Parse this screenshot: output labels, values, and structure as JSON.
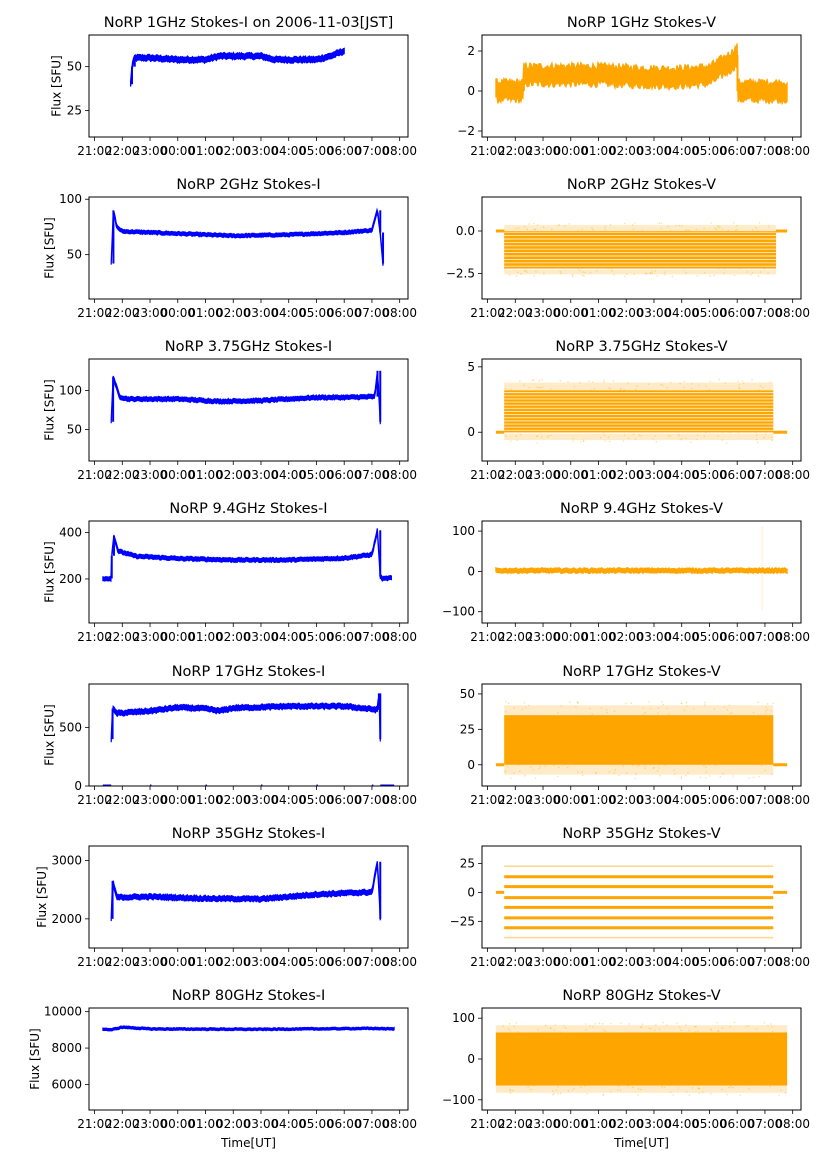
{
  "figure": {
    "colors": {
      "stokes_i": "#0000ff",
      "stokes_v": "#ffa500",
      "axes": "#000000"
    },
    "x_tick_labels": [
      "21:00",
      "22:00",
      "23:00",
      "00:00",
      "01:00",
      "02:00",
      "03:00",
      "04:00",
      "05:00",
      "06:00",
      "07:00",
      "08:00"
    ]
  },
  "chart_data": [
    {
      "type": "scatter",
      "title": "NoRP 1GHz Stokes-I on 2006-11-03[JST]",
      "xlabel": "",
      "ylabel": "Flux [SFU]",
      "ylim": [
        10,
        68
      ],
      "yticks": [
        25,
        50
      ],
      "ytick_labels": [
        "25",
        "50"
      ],
      "series": [
        {
          "name": "Stokes-I",
          "x_range_hours": [
            22.3,
            30.0
          ],
          "profile": [
            [
              22.3,
              40
            ],
            [
              22.35,
              50
            ],
            [
              22.45,
              55
            ],
            [
              23,
              55
            ],
            [
              24,
              54
            ],
            [
              25,
              54
            ],
            [
              25.5,
              56
            ],
            [
              26,
              56
            ],
            [
              27,
              56
            ],
            [
              27.5,
              54
            ],
            [
              28,
              54
            ],
            [
              29,
              54
            ],
            [
              29.5,
              56
            ],
            [
              30,
              59
            ]
          ],
          "spread": 1.5
        }
      ]
    },
    {
      "type": "scatter",
      "title": "NoRP 1GHz Stokes-V",
      "xlabel": "",
      "ylabel": "",
      "ylim": [
        -2.3,
        2.8
      ],
      "yticks": [
        -2,
        0,
        2
      ],
      "ytick_labels": [
        "−2",
        "0",
        "2"
      ],
      "series": [
        {
          "name": "Stokes-V",
          "x_range_hours": [
            21.3,
            31.8
          ],
          "profile": [
            [
              21.3,
              0
            ],
            [
              22.3,
              0
            ],
            [
              22.31,
              0.8
            ],
            [
              23,
              0.8
            ],
            [
              25,
              0.8
            ],
            [
              27,
              0.7
            ],
            [
              28,
              0.7
            ],
            [
              29,
              0.8
            ],
            [
              29.8,
              1.5
            ],
            [
              30,
              1.8
            ],
            [
              30.01,
              0
            ],
            [
              31.8,
              0
            ]
          ],
          "spread": 0.45
        }
      ]
    },
    {
      "type": "scatter",
      "title": "NoRP 2GHz Stokes-I",
      "xlabel": "",
      "ylabel": "Flux [SFU]",
      "ylim": [
        10,
        102
      ],
      "yticks": [
        50,
        100
      ],
      "ytick_labels": [
        "50",
        "100"
      ],
      "series": [
        {
          "name": "Stokes-I",
          "x_range_hours": [
            21.6,
            31.4
          ],
          "profile": [
            [
              21.6,
              42
            ],
            [
              21.68,
              90
            ],
            [
              21.8,
              75
            ],
            [
              22,
              71
            ],
            [
              24,
              69
            ],
            [
              26,
              67
            ],
            [
              28,
              68
            ],
            [
              30,
              70
            ],
            [
              31,
              72
            ],
            [
              31.2,
              90
            ],
            [
              31.3,
              70
            ],
            [
              31.4,
              42
            ]
          ],
          "spread": 1.5
        }
      ]
    },
    {
      "type": "scatter",
      "title": "NoRP 2GHz Stokes-V",
      "xlabel": "",
      "ylabel": "",
      "ylim": [
        -4.0,
        2.0
      ],
      "yticks": [
        -2.5,
        0.0
      ],
      "ytick_labels": [
        "−2.5",
        "0.0"
      ],
      "series": [
        {
          "name": "Stokes-V",
          "x_range_hours": [
            21.3,
            31.8
          ],
          "bands": [
            [
              -2.2,
              0.0
            ]
          ],
          "band_x": [
            21.6,
            31.4
          ],
          "baseline_x": [
            [
              21.3,
              21.6
            ],
            [
              31.4,
              31.8
            ]
          ],
          "spread": 0.35
        }
      ]
    },
    {
      "type": "scatter",
      "title": "NoRP 3.75GHz Stokes-I",
      "xlabel": "",
      "ylabel": "Flux [SFU]",
      "ylim": [
        10,
        140
      ],
      "yticks": [
        50,
        100
      ],
      "ytick_labels": [
        "50",
        "100"
      ],
      "series": [
        {
          "name": "Stokes-I",
          "x_range_hours": [
            21.6,
            31.3
          ],
          "profile": [
            [
              21.6,
              60
            ],
            [
              21.67,
              117
            ],
            [
              21.9,
              92
            ],
            [
              22.2,
              89
            ],
            [
              24,
              89
            ],
            [
              25.5,
              86
            ],
            [
              27,
              87
            ],
            [
              28,
              89
            ],
            [
              29,
              91
            ],
            [
              30,
              91
            ],
            [
              31.1,
              92
            ],
            [
              31.2,
              125
            ],
            [
              31.3,
              60
            ]
          ],
          "spread": 2.5
        }
      ]
    },
    {
      "type": "scatter",
      "title": "NoRP 3.75GHz Stokes-V",
      "xlabel": "",
      "ylabel": "",
      "ylim": [
        -2.2,
        5.6
      ],
      "yticks": [
        0,
        5
      ],
      "ytick_labels": [
        "0",
        "5"
      ],
      "series": [
        {
          "name": "Stokes-V",
          "x_range_hours": [
            21.3,
            31.8
          ],
          "bands": [
            [
              0.0,
              3.2
            ]
          ],
          "band_x": [
            21.6,
            31.3
          ],
          "baseline_x": [
            [
              21.3,
              21.6
            ],
            [
              31.3,
              31.8
            ]
          ],
          "spread": 0.6
        }
      ]
    },
    {
      "type": "scatter",
      "title": "NoRP 9.4GHz Stokes-I",
      "xlabel": "",
      "ylabel": "Flux [SFU]",
      "ylim": [
        10,
        450
      ],
      "yticks": [
        200,
        400
      ],
      "ytick_labels": [
        "200",
        "400"
      ],
      "series": [
        {
          "name": "Stokes-I",
          "x_range_hours": [
            21.3,
            31.7
          ],
          "profile": [
            [
              21.3,
              202
            ],
            [
              21.6,
              202
            ],
            [
              21.62,
              300
            ],
            [
              21.7,
              385
            ],
            [
              21.85,
              320
            ],
            [
              22.5,
              298
            ],
            [
              24,
              288
            ],
            [
              26,
              282
            ],
            [
              28,
              282
            ],
            [
              30,
              290
            ],
            [
              31,
              305
            ],
            [
              31.2,
              410
            ],
            [
              31.3,
              210
            ],
            [
              31.4,
              200
            ],
            [
              31.7,
              205
            ]
          ],
          "spread": 8
        }
      ]
    },
    {
      "type": "scatter",
      "title": "NoRP 9.4GHz Stokes-V",
      "xlabel": "",
      "ylabel": "",
      "ylim": [
        -128,
        125
      ],
      "yticks": [
        -100,
        0,
        100
      ],
      "ytick_labels": [
        "−100",
        "0",
        "100"
      ],
      "series": [
        {
          "name": "Stokes-V",
          "x_range_hours": [
            21.3,
            31.8
          ],
          "profile": [
            [
              21.3,
              2
            ],
            [
              31.8,
              2
            ]
          ],
          "spread": 5,
          "spike": {
            "x": 30.9,
            "range": [
              -95,
              110
            ]
          }
        }
      ]
    },
    {
      "type": "scatter",
      "title": "NoRP 17GHz Stokes-I",
      "xlabel": "",
      "ylabel": "Flux [SFU]",
      "ylim": [
        0,
        870
      ],
      "yticks": [
        0,
        500
      ],
      "ytick_labels": [
        "0",
        "500"
      ],
      "series": [
        {
          "name": "Stokes-I",
          "x_range_hours": [
            21.6,
            31.3
          ],
          "profile": [
            [
              21.6,
              400
            ],
            [
              21.65,
              660
            ],
            [
              21.8,
              620
            ],
            [
              23,
              640
            ],
            [
              24,
              670
            ],
            [
              25,
              660
            ],
            [
              25.5,
              640
            ],
            [
              26,
              665
            ],
            [
              28,
              680
            ],
            [
              30,
              680
            ],
            [
              31.2,
              650
            ],
            [
              31.25,
              790
            ],
            [
              31.3,
              400
            ]
          ],
          "spread": 20,
          "zero_segments": [
            [
              21.3,
              21.6
            ],
            [
              23,
              23.05
            ],
            [
              25,
              25.05
            ],
            [
              27,
              27.05
            ],
            [
              29,
              29.05
            ],
            [
              31,
              31.05
            ],
            [
              31.3,
              31.8
            ]
          ]
        }
      ]
    },
    {
      "type": "scatter",
      "title": "NoRP 17GHz Stokes-V",
      "xlabel": "",
      "ylabel": "",
      "ylim": [
        -15,
        57
      ],
      "yticks": [
        0,
        25,
        50
      ],
      "ytick_labels": [
        "0",
        "25",
        "50"
      ],
      "series": [
        {
          "name": "Stokes-V",
          "x_range_hours": [
            21.3,
            31.8
          ],
          "bands": [
            [
              0,
              35
            ]
          ],
          "band_x": [
            21.6,
            31.3
          ],
          "baseline_x": [
            [
              21.3,
              21.6
            ],
            [
              31.3,
              31.8
            ]
          ],
          "spread": 7
        }
      ]
    },
    {
      "type": "scatter",
      "title": "NoRP 35GHz Stokes-I",
      "xlabel": "",
      "ylabel": "Flux [SFU]",
      "ylim": [
        1500,
        3250
      ],
      "yticks": [
        2000,
        3000
      ],
      "ytick_labels": [
        "2000",
        "3000"
      ],
      "series": [
        {
          "name": "Stokes-I",
          "x_range_hours": [
            21.6,
            31.3
          ],
          "profile": [
            [
              21.6,
              2000
            ],
            [
              21.65,
              2650
            ],
            [
              21.8,
              2370
            ],
            [
              23,
              2380
            ],
            [
              25,
              2350
            ],
            [
              27,
              2340
            ],
            [
              29,
              2420
            ],
            [
              31,
              2460
            ],
            [
              31.2,
              2980
            ],
            [
              31.3,
              2000
            ]
          ],
          "spread": 40
        }
      ]
    },
    {
      "type": "scatter",
      "title": "NoRP 35GHz Stokes-V",
      "xlabel": "",
      "ylabel": "",
      "ylim": [
        -48,
        40
      ],
      "yticks": [
        -25,
        0,
        25
      ],
      "ytick_labels": [
        "−25",
        "0",
        "25"
      ],
      "series": [
        {
          "name": "Stokes-V",
          "x_range_hours": [
            21.3,
            31.8
          ],
          "levels": [
            -39,
            -30.5,
            -22,
            -13,
            -4.5,
            5,
            13.5,
            22.5
          ],
          "band_x": [
            21.6,
            31.3
          ],
          "baseline_x": [
            [
              21.3,
              21.6
            ],
            [
              31.3,
              31.8
            ]
          ]
        }
      ]
    },
    {
      "type": "scatter",
      "title": "NoRP 80GHz Stokes-I",
      "xlabel": "Time[UT]",
      "ylabel": "Flux [SFU]",
      "ylim": [
        4600,
        10200
      ],
      "yticks": [
        6000,
        8000,
        10000
      ],
      "ytick_labels": [
        "6000",
        "8000",
        "10000"
      ],
      "series": [
        {
          "name": "Stokes-I",
          "x_range_hours": [
            21.3,
            31.8
          ],
          "profile": [
            [
              21.3,
              9050
            ],
            [
              21.6,
              9000
            ],
            [
              22,
              9150
            ],
            [
              23,
              9050
            ],
            [
              27,
              9030
            ],
            [
              31,
              9080
            ],
            [
              31.8,
              9050
            ]
          ],
          "spread": 60
        }
      ]
    },
    {
      "type": "scatter",
      "title": "NoRP 80GHz Stokes-V",
      "xlabel": "Time[UT]",
      "ylabel": "",
      "ylim": [
        -125,
        125
      ],
      "yticks": [
        -100,
        0,
        100
      ],
      "ytick_labels": [
        "−100",
        "0",
        "100"
      ],
      "series": [
        {
          "name": "Stokes-V",
          "x_range_hours": [
            21.3,
            31.8
          ],
          "bands": [
            [
              -65,
              65
            ]
          ],
          "band_x": [
            21.3,
            31.8
          ],
          "spread": 18
        }
      ]
    }
  ]
}
